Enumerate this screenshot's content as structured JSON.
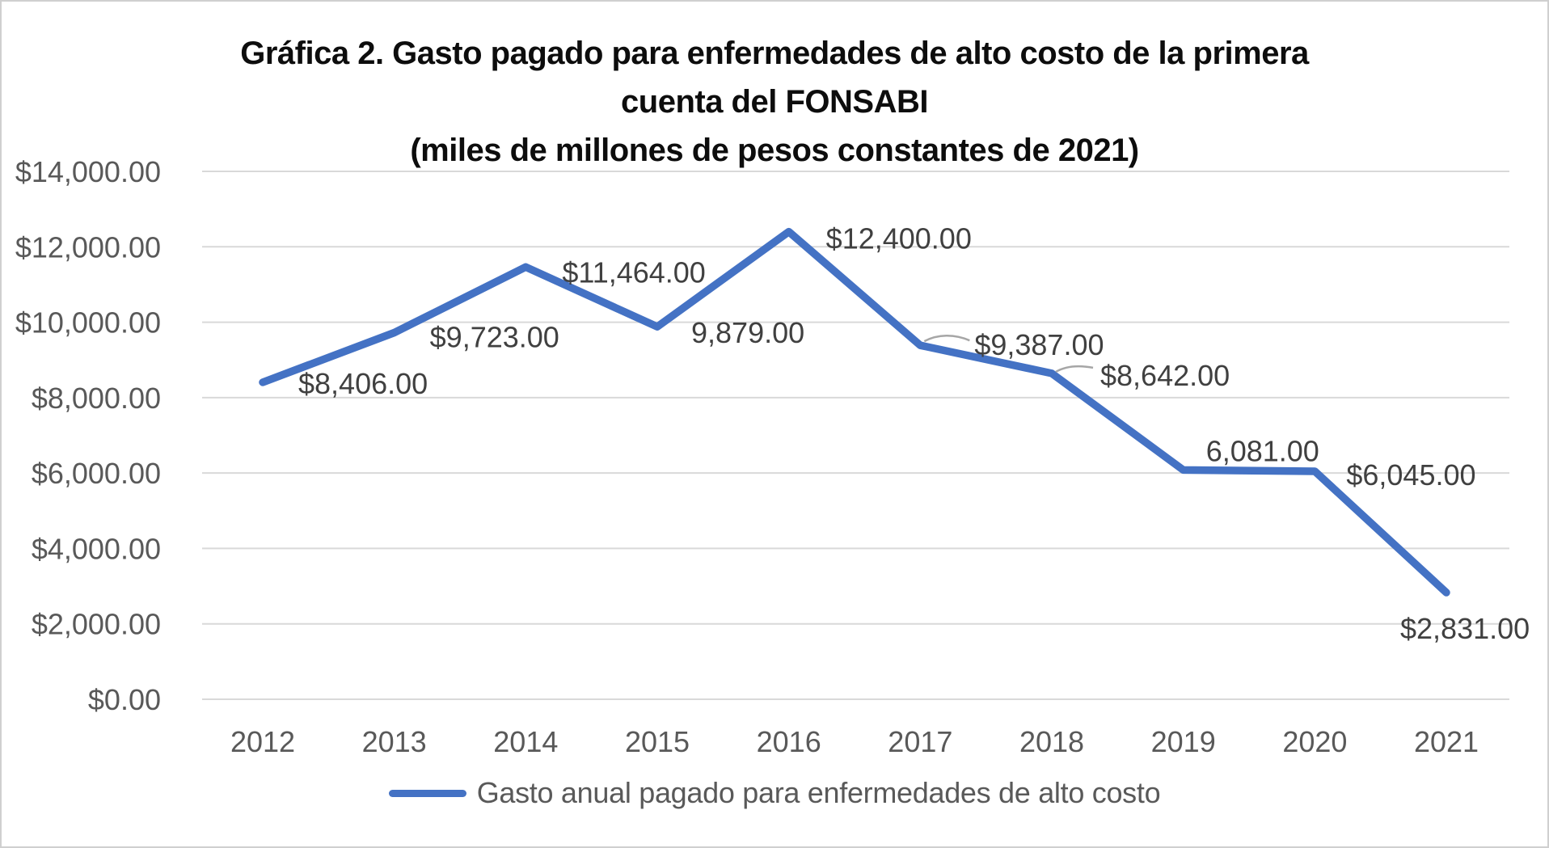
{
  "figure": {
    "title_lines": [
      "Gráfica 2. Gasto pagado para enfermedades de alto costo de la primera",
      "cuenta del FONSABI",
      "(miles de millones de pesos constantes de 2021)"
    ]
  },
  "legend": {
    "label": "Gasto anual pagado para enfermedades de alto costo"
  },
  "colors": {
    "line": "#4472C4",
    "gridline": "#D9D9D9",
    "axis_text": "#595959",
    "data_label": "#404040",
    "leader_line": "#A6A6A6"
  },
  "chart_data": {
    "type": "line",
    "title": "Gráfica 2. Gasto pagado para enfermedades de alto costo de la primera cuenta del FONSABI (miles de millones de pesos constantes de 2021)",
    "categories": [
      "2012",
      "2013",
      "2014",
      "2015",
      "2016",
      "2017",
      "2018",
      "2019",
      "2020",
      "2021"
    ],
    "series": [
      {
        "name": "Gasto anual pagado para enfermedades de alto costo",
        "values": [
          8406,
          9723,
          11464,
          9879,
          12400,
          9387,
          8642,
          6081,
          6045,
          2831
        ]
      }
    ],
    "point_labels": [
      "$8,406.00",
      "$9,723.00",
      "$11,464.00",
      "9,879.00",
      "$12,400.00",
      "$9,387.00",
      "$8,642.00",
      "6,081.00",
      "$6,045.00",
      "$2,831.00"
    ],
    "y_tick_values": [
      0,
      2000,
      4000,
      6000,
      8000,
      10000,
      12000,
      14000
    ],
    "y_tick_labels": [
      "$0.00",
      "$2,000.00",
      "$4,000.00",
      "$6,000.00",
      "$8,000.00",
      "$10,000.00",
      "$12,000.00",
      "$14,000.00"
    ],
    "ylim": [
      0,
      14000
    ],
    "xlabel": "",
    "ylabel": "",
    "grid": true,
    "legend_position": "bottom"
  }
}
